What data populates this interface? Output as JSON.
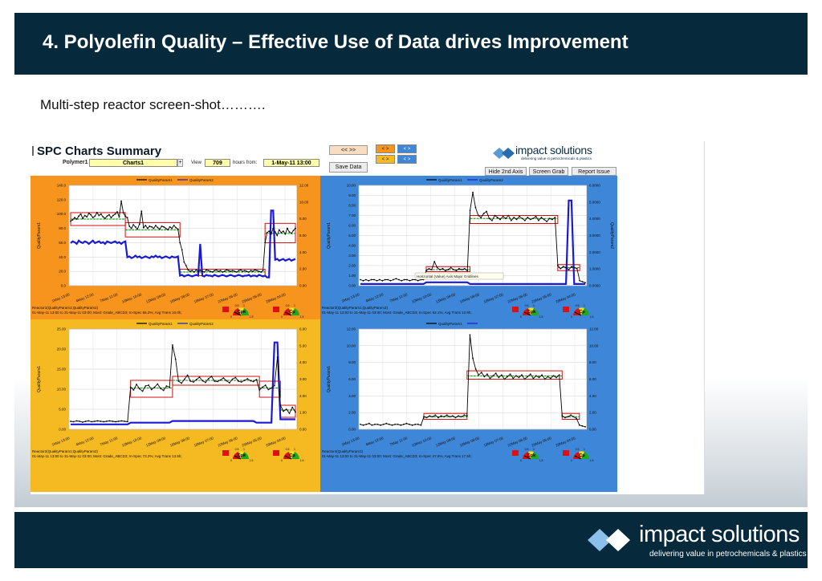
{
  "slide": {
    "title": "4. Polyolefin Quality – Effective Use of Data drives Improvement",
    "subtitle": "Multi-step reactor screen-shot……….",
    "footer_logo_name": "impact solutions",
    "footer_logo_tagline": "delivering value in petrochemicals & plastics"
  },
  "app": {
    "title": "SPC Charts Summary",
    "polymer_label": "Polymer1",
    "chart_select": "Charts1",
    "view_label": "View",
    "view_value": "709",
    "hours_from_label": "hours from:",
    "date_value": "1-May-11 13:00",
    "nav_button": "<< >>",
    "orange_btn_1": "< >",
    "orange_btn_2": "< >",
    "blue_btn_1": "< >",
    "blue_btn_2": "< >",
    "save_data": "Save Data",
    "hide_2nd_axis": "Hide 2nd Axis",
    "screen_grab": "Screen Grab",
    "report_issue": "Report Issue",
    "logo_name": "impact solutions",
    "logo_tagline": "delivering value in petrochemicals & plastics"
  },
  "colors": {
    "navy": "#062a3c",
    "orange_panel": "#f7941d",
    "blue_panel": "#3d86d8",
    "yellow_panel": "#f5b921",
    "series1": "#000000",
    "series2": "#1a1ad6",
    "limits": "#d01010",
    "mean": "#128a12"
  },
  "chart_data": [
    {
      "type": "line",
      "panel": "Reactor1",
      "legend": [
        "QualityParam1",
        "QualityParam2"
      ],
      "ylabel": "QualityParam1",
      "y2label": "QualityParam2",
      "ylim": [
        0,
        140
      ],
      "y2lim": [
        0,
        12
      ],
      "y_ticks": [
        "0.0",
        "20.0",
        "40.0",
        "60.0",
        "80.0",
        "100.0",
        "120.0",
        "140.0"
      ],
      "y2_ticks": [
        "0.00",
        "2.00",
        "4.00",
        "6.00",
        "8.00",
        "10.00",
        "12.00"
      ],
      "x_ticks": [
        "1May 13:00",
        "4May 12:00",
        "7May 11:00",
        "10May 10:00",
        "13May 09:00",
        "16May 08:00",
        "19May 07:00",
        "22May 06:00",
        "25May 05:00",
        "28May 04:00"
      ],
      "series": [
        {
          "name": "QualityParam1",
          "axis": "left",
          "values": [
            90,
            92,
            95,
            93,
            97,
            100,
            94,
            98,
            96,
            101,
            99,
            95,
            97,
            102,
            98,
            100,
            96,
            94,
            97,
            99,
            95,
            98,
            100,
            103,
            96,
            118,
            102,
            97,
            95,
            83,
            80,
            85,
            82,
            79,
            86,
            104,
            81,
            84,
            80,
            83,
            82,
            80,
            84,
            81,
            79,
            83,
            82,
            80,
            78,
            82,
            80,
            84,
            81,
            79,
            60,
            50,
            33,
            28,
            22,
            20,
            21,
            19,
            22,
            20,
            21,
            20,
            19,
            22,
            21,
            20,
            19,
            21,
            22,
            20,
            21,
            19,
            20,
            22,
            21,
            20,
            21,
            20,
            19,
            21,
            22,
            20,
            21,
            20,
            19,
            21,
            20,
            22,
            21,
            20,
            19,
            21,
            60,
            74,
            76,
            72,
            80,
            75,
            70,
            78,
            74,
            76,
            72,
            80,
            75,
            73,
            77,
            80
          ]
        },
        {
          "name": "QualityParam2",
          "axis": "right",
          "values": [
            5.1,
            5.3,
            5.2,
            5.0,
            5.4,
            5.2,
            5.1,
            5.3,
            5.2,
            5.0,
            5.2,
            5.4,
            5.1,
            5.2,
            5.3,
            5.1,
            5.2,
            5.0,
            5.3,
            5.2,
            5.1,
            5.2,
            5.3,
            5.1,
            5.2,
            5.0,
            5.2,
            5.3,
            3.4,
            3.5,
            3.3,
            3.4,
            3.6,
            3.4,
            3.5,
            3.3,
            3.4,
            3.5,
            3.4,
            3.3,
            3.5,
            3.4,
            3.6,
            3.4,
            3.5,
            3.3,
            3.4,
            3.5,
            3.4,
            3.3,
            3.5,
            3.4,
            3.4,
            3.5,
            1.2,
            1.3,
            1.1,
            1.2,
            1.3,
            1.2,
            1.1,
            1.2,
            1.3,
            1.2,
            5.0,
            1.2,
            1.1,
            1.3,
            1.2,
            1.2,
            1.1,
            1.3,
            1.2,
            1.1,
            1.2,
            1.3,
            1.2,
            1.1,
            1.2,
            1.3,
            1.2,
            1.1,
            1.2,
            1.3,
            1.2,
            1.1,
            1.2,
            1.2,
            1.3,
            1.1,
            1.2,
            1.2,
            1.1,
            1.3,
            1.2,
            1.1,
            1.2,
            1.0,
            1.0,
            9.0,
            9.0,
            3.1,
            3.2,
            3.0,
            3.1,
            3.2,
            3.0,
            3.1,
            3.2,
            3.0,
            3.1,
            3.2
          ]
        }
      ],
      "limits": [
        [
          0,
          27,
          84,
          102
        ],
        [
          27,
          54,
          68,
          88
        ],
        [
          54,
          96,
          14,
          23
        ],
        [
          96,
          111,
          60,
          87
        ]
      ],
      "means": [
        93,
        78,
        19,
        73
      ],
      "footer": [
        "Reactor1(QualityParam1;QualityParam2)",
        "01-May-11 13:00 to 31-May-11 03:00; Most: Grade_ABCD3; In-Spec 66.2%; Avg Trans 10.0h;"
      ]
    },
    {
      "type": "line",
      "panel": "Reactor3",
      "legend": [
        "QualityParam1",
        "QualityParam2"
      ],
      "ylabel": "QualityParam1",
      "y2label": "QualityParam2",
      "ylim": [
        0,
        10
      ],
      "y2lim": [
        0,
        6
      ],
      "y_ticks": [
        "0.00",
        "1.00",
        "2.00",
        "3.00",
        "4.00",
        "5.00",
        "6.00",
        "7.00",
        "8.00",
        "9.00",
        "10.00"
      ],
      "y2_ticks": [
        "0.0000",
        "1.0000",
        "2.0000",
        "3.0000",
        "4.0000",
        "5.0000",
        "6.0000"
      ],
      "x_ticks": [
        "1May 13:00",
        "4May 12:00",
        "7May 11:00",
        "10May 10:00",
        "13May 09:00",
        "16May 08:00",
        "19May 07:00",
        "22May 06:00",
        "25May 05:00",
        "28May 04:00"
      ],
      "tooltip": "Horizontal (Value) Axis Major Gridlines",
      "series": [
        {
          "name": "QualityParam1",
          "axis": "left",
          "values": [
            0.6,
            0.5,
            0.6,
            0.5,
            0.6,
            0.6,
            0.5,
            0.6,
            0.5,
            0.6,
            0.6,
            0.5,
            0.6,
            0.7,
            0.6,
            0.5,
            0.6,
            0.6,
            0.5,
            0.6,
            0.6,
            0.5,
            0.6,
            0.6,
            1.5,
            1.7,
            1.6,
            2.4,
            1.8,
            1.6,
            1.7,
            1.5,
            1.6,
            1.8,
            1.6,
            1.5,
            1.7,
            1.6,
            1.7,
            1.5,
            7.5,
            9.3,
            7.8,
            7.0,
            6.8,
            7.2,
            7.4,
            6.7,
            6.5,
            7.0,
            6.8,
            6.6,
            6.9,
            6.7,
            7.0,
            6.5,
            6.8,
            6.6,
            6.9,
            6.7,
            6.5,
            6.8,
            6.6,
            6.7,
            6.9,
            6.5,
            6.8,
            6.6,
            6.4,
            6.7,
            6.6,
            6.8,
            2.0,
            1.7,
            1.9,
            1.8,
            1.6,
            1.9,
            1.8,
            1.7,
            0.5,
            0.4,
            0.3
          ]
        },
        {
          "name": "QualityParam2",
          "axis": "right",
          "values": [
            0.1,
            0.1,
            0.1,
            0.1,
            0.1,
            0.1,
            0.1,
            0.1,
            0.1,
            0.1,
            0.1,
            0.1,
            0.1,
            0.1,
            0.1,
            0.1,
            0.1,
            0.1,
            0.1,
            0.1,
            0.1,
            0.1,
            0.1,
            0.1,
            0.2,
            0.2,
            0.2,
            0.2,
            0.2,
            0.2,
            0.2,
            0.2,
            0.2,
            0.2,
            0.2,
            0.2,
            0.2,
            0.2,
            0.2,
            0.2,
            0.1,
            0.1,
            0.1,
            0.1,
            0.1,
            0.1,
            0.1,
            0.1,
            0.1,
            0.1,
            0.1,
            0.1,
            0.1,
            0.1,
            0.1,
            0.1,
            0.1,
            0.1,
            0.1,
            0.1,
            0.1,
            0.1,
            0.1,
            0.1,
            0.1,
            0.1,
            0.1,
            0.1,
            0.1,
            0.1,
            0.1,
            0.1,
            0.1,
            0.1,
            0.1,
            0.1,
            5.1,
            5.1,
            0.1,
            0.1,
            0.1,
            0.1,
            0.1
          ]
        },
        {
          "name": "",
          "axis": "left",
          "values": []
        }
      ],
      "limits": [
        [
          24,
          40,
          1.4,
          1.9
        ],
        [
          40,
          72,
          6.2,
          7.0
        ],
        [
          72,
          80,
          1.5,
          2.1
        ]
      ],
      "means": [
        1.6,
        6.7,
        1.8
      ],
      "footer": [
        "Reactor3(QualityParam1;QualityParam2)",
        "01-May-11 13:00 to 31-May-11 03:00; Most: Grade_ABCD3; In-Spec 52.1%; Avg Trans 12.5h;"
      ]
    },
    {
      "type": "line",
      "panel": "Reactor2",
      "legend": [
        "QualityParam1",
        "QualityParam2"
      ],
      "ylabel": "QualityParam1",
      "y2label": "QualityParam2",
      "ylim": [
        0,
        25
      ],
      "y2lim": [
        0,
        6
      ],
      "y_ticks": [
        "0.00",
        "5.00",
        "10.00",
        "15.00",
        "20.00",
        "25.00"
      ],
      "y2_ticks": [
        "0.00",
        "1.00",
        "2.00",
        "3.00",
        "4.00",
        "5.00",
        "6.00"
      ],
      "x_ticks": [
        "1May 13:00",
        "4May 12:00",
        "7May 11:00",
        "10May 10:00",
        "13May 09:00",
        "16May 08:00",
        "19May 07:00",
        "22May 06:00",
        "25May 05:00",
        "28May 04:00"
      ],
      "series": [
        {
          "name": "QualityParam1",
          "axis": "left",
          "values": [
            2.0,
            1.9,
            2.1,
            2.0,
            1.8,
            2.0,
            2.1,
            1.9,
            2.0,
            2.1,
            2.0,
            1.9,
            2.0,
            2.1,
            2.0,
            1.9,
            2.0,
            2.1,
            2.0,
            1.9,
            10.5,
            9.8,
            11.2,
            10.1,
            9.5,
            10.8,
            11.0,
            9.9,
            10.5,
            11.3,
            10.2,
            9.7,
            10.8,
            10.5,
            21.0,
            17.5,
            12.0,
            11.5,
            12.5,
            13.5,
            12.0,
            11.8,
            12.4,
            13.0,
            12.1,
            11.7,
            12.6,
            13.2,
            12.0,
            11.9,
            12.3,
            12.8,
            12.1,
            11.6,
            12.5,
            12.9,
            12.0,
            11.8,
            12.2,
            12.6,
            12.1,
            11.9,
            12.4,
            9.8,
            10.5,
            11.0,
            9.9,
            10.3,
            10.9,
            18.0,
            6.0,
            4.5,
            5.0,
            4.0,
            5.5,
            4.3
          ]
        },
        {
          "name": "QualityParam2",
          "axis": "right",
          "values": [
            0.3,
            0.3,
            0.3,
            0.3,
            0.3,
            0.3,
            0.3,
            0.3,
            0.3,
            0.3,
            0.3,
            0.3,
            0.3,
            0.3,
            0.3,
            0.3,
            0.3,
            0.3,
            0.3,
            0.3,
            0.4,
            0.4,
            0.4,
            0.4,
            0.4,
            0.4,
            0.4,
            0.4,
            0.4,
            0.4,
            0.4,
            0.4,
            0.4,
            0.4,
            0.5,
            0.5,
            0.5,
            0.5,
            0.5,
            0.5,
            0.5,
            0.5,
            0.5,
            0.5,
            0.5,
            0.5,
            0.5,
            0.5,
            0.5,
            0.5,
            0.5,
            0.5,
            0.5,
            0.5,
            0.5,
            0.5,
            0.5,
            0.5,
            0.5,
            0.5,
            0.5,
            0.5,
            0.4,
            0.4,
            0.4,
            0.4,
            0.4,
            0.4,
            5.2,
            5.2,
            0.6,
            0.6,
            0.6,
            0.6,
            0.6,
            0.6
          ]
        }
      ],
      "limits": [
        [
          20,
          34,
          8.0,
          12.2
        ],
        [
          34,
          63,
          11.0,
          13.2
        ],
        [
          63,
          70,
          8.0,
          12.0
        ],
        [
          70,
          76,
          3.0,
          6.0
        ]
      ],
      "means": [
        10.3,
        12.2,
        10.3,
        4.8
      ],
      "footer": [
        "Reactor2(QualityParam1;QualityParam2)",
        "01-May-11 13:00 to 31-May-11 03:00; Most: Grade_ABCD3; In-Spec 73.2%; Avg Trans 13.5h;"
      ]
    },
    {
      "type": "line",
      "panel": "Reactor4",
      "legend": [
        "QualityParam1",
        ""
      ],
      "ylabel": "QualityParam1",
      "y2label": "",
      "ylim": [
        0,
        12
      ],
      "y2lim": [
        0,
        12
      ],
      "y_ticks": [
        "0.00",
        "2.00",
        "4.00",
        "6.00",
        "8.00",
        "10.00",
        "12.00"
      ],
      "y2_ticks": [
        "0.00",
        "2.00",
        "4.00",
        "6.00",
        "8.00",
        "10.00",
        "12.00"
      ],
      "x_ticks": [
        "1May 13:00",
        "4May 12:00",
        "7May 11:00",
        "10May 10:00",
        "13May 09:00",
        "16May 08:00",
        "19May 07:00",
        "22May 06:00",
        "25May 05:00",
        "28May 04:00"
      ],
      "series": [
        {
          "name": "QualityParam1",
          "axis": "left",
          "values": [
            0.6,
            0.5,
            0.6,
            0.7,
            0.5,
            0.6,
            0.6,
            0.5,
            0.6,
            0.7,
            0.6,
            0.5,
            0.6,
            0.6,
            0.5,
            0.6,
            0.7,
            0.6,
            0.5,
            0.6,
            0.6,
            0.5,
            1.5,
            1.4,
            1.6,
            1.5,
            1.7,
            1.4,
            1.6,
            1.5,
            1.7,
            1.5,
            1.6,
            1.4,
            1.6,
            1.5,
            1.7,
            1.6,
            11.3,
            8.5,
            7.2,
            6.5,
            6.8,
            6.3,
            6.6,
            6.1,
            6.4,
            6.7,
            6.2,
            6.5,
            6.0,
            6.3,
            6.6,
            6.1,
            6.4,
            6.2,
            6.5,
            6.0,
            6.3,
            6.6,
            6.1,
            6.4,
            6.2,
            6.5,
            6.0,
            6.3,
            6.1,
            6.4,
            6.2,
            6.5,
            1.6,
            1.4,
            1.5,
            1.7,
            1.5,
            1.3,
            0.5,
            0.4,
            0.3
          ]
        },
        {
          "name": "",
          "axis": "right",
          "values": []
        }
      ],
      "limits": [
        [
          22,
          37,
          1.2,
          1.9
        ],
        [
          37,
          70,
          6.0,
          7.0
        ],
        [
          70,
          76,
          1.2,
          1.9
        ]
      ],
      "means": [
        1.5,
        6.4,
        1.5
      ],
      "footer": [
        "Reactor4(QualityParam1)",
        "01-May-11 13:00 to 31-May-11 03:00; Most: Grade_ABCD3; In-Spec 47.6%; Avg Trans 17.5h;"
      ]
    }
  ],
  "gauges": {
    "cpk_label": "Cpk",
    "cp_label": "Cp",
    "scale": [
      "0",
      "0.5",
      "1",
      "1.5"
    ]
  }
}
